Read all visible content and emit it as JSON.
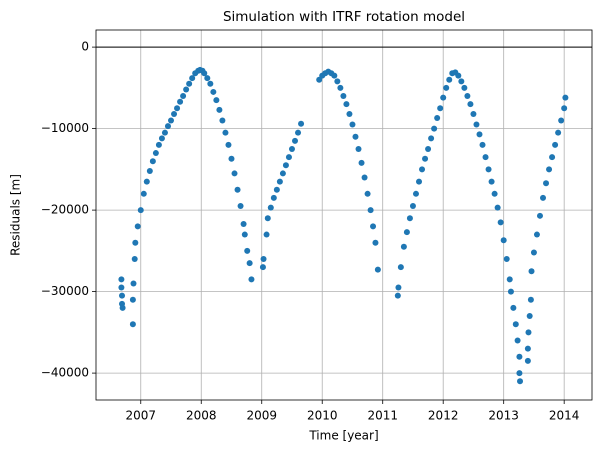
{
  "chart_data": {
    "type": "scatter",
    "title": "Simulation with ITRF rotation model",
    "xlabel": "Time [year]",
    "ylabel": "Residuals [m]",
    "xlim": [
      2006.26,
      2014.46
    ],
    "ylim": [
      -43300,
      2100
    ],
    "xticks": [
      2007,
      2008,
      2009,
      2010,
      2011,
      2012,
      2013,
      2014
    ],
    "yticks": [
      {
        "value": 0,
        "label": "0"
      },
      {
        "value": -10000,
        "label": "−10000"
      },
      {
        "value": -20000,
        "label": "−20000"
      },
      {
        "value": -30000,
        "label": "−30000"
      },
      {
        "value": -40000,
        "label": "−40000"
      }
    ],
    "grid": true,
    "hline": 0,
    "x": [
      2006.68,
      2006.68,
      2006.69,
      2006.69,
      2006.7,
      2006.87,
      2006.87,
      2006.88,
      2006.9,
      2006.91,
      2006.95,
      2007.0,
      2007.05,
      2007.1,
      2007.15,
      2007.2,
      2007.25,
      2007.3,
      2007.35,
      2007.4,
      2007.45,
      2007.5,
      2007.55,
      2007.6,
      2007.65,
      2007.7,
      2007.75,
      2007.8,
      2007.85,
      2007.9,
      2007.95,
      2007.98,
      2008.02,
      2008.05,
      2008.1,
      2008.15,
      2008.2,
      2008.25,
      2008.3,
      2008.35,
      2008.4,
      2008.45,
      2008.5,
      2008.55,
      2008.6,
      2008.65,
      2008.7,
      2008.72,
      2008.76,
      2008.8,
      2008.83,
      2009.02,
      2009.03,
      2009.08,
      2009.1,
      2009.15,
      2009.2,
      2009.25,
      2009.3,
      2009.35,
      2009.4,
      2009.45,
      2009.5,
      2009.55,
      2009.6,
      2009.65,
      2009.95,
      2010.0,
      2010.05,
      2010.1,
      2010.15,
      2010.2,
      2010.25,
      2010.3,
      2010.35,
      2010.4,
      2010.45,
      2010.5,
      2010.55,
      2010.6,
      2010.65,
      2010.7,
      2010.75,
      2010.8,
      2010.84,
      2010.88,
      2010.92,
      2011.25,
      2011.26,
      2011.3,
      2011.35,
      2011.4,
      2011.45,
      2011.5,
      2011.55,
      2011.6,
      2011.65,
      2011.7,
      2011.75,
      2011.8,
      2011.85,
      2011.9,
      2011.95,
      2012.0,
      2012.05,
      2012.1,
      2012.15,
      2012.2,
      2012.25,
      2012.3,
      2012.35,
      2012.4,
      2012.45,
      2012.5,
      2012.55,
      2012.6,
      2012.65,
      2012.7,
      2012.75,
      2012.8,
      2012.85,
      2012.9,
      2012.95,
      2013.0,
      2013.05,
      2013.1,
      2013.12,
      2013.16,
      2013.2,
      2013.23,
      2013.26,
      2013.26,
      2013.27,
      2013.4,
      2013.4,
      2013.41,
      2013.43,
      2013.45,
      2013.46,
      2013.5,
      2013.55,
      2013.6,
      2013.65,
      2013.7,
      2013.75,
      2013.8,
      2013.85,
      2013.9,
      2013.95,
      2014.0,
      2014.02
    ],
    "series": [
      {
        "color": "#1f77b4",
        "values": [
          -28500,
          -29500,
          -30500,
          -31500,
          -32000,
          -34000,
          -31000,
          -29000,
          -26000,
          -24000,
          -22000,
          -20000,
          -18000,
          -16500,
          -15200,
          -14000,
          -13000,
          -12000,
          -11200,
          -10500,
          -9700,
          -9000,
          -8200,
          -7500,
          -6700,
          -6000,
          -5200,
          -4500,
          -3800,
          -3200,
          -2900,
          -2800,
          -2900,
          -3200,
          -3800,
          -4500,
          -5500,
          -6500,
          -7700,
          -9000,
          -10500,
          -12000,
          -13700,
          -15500,
          -17500,
          -19500,
          -21700,
          -23000,
          -25000,
          -26500,
          -28500,
          -27000,
          -26000,
          -23000,
          -21000,
          -19700,
          -18500,
          -17500,
          -16500,
          -15500,
          -14500,
          -13500,
          -12500,
          -11500,
          -10500,
          -9400,
          -4000,
          -3500,
          -3200,
          -3000,
          -3200,
          -3500,
          -4200,
          -5000,
          -6000,
          -7000,
          -8200,
          -9500,
          -11000,
          -12500,
          -14200,
          -16000,
          -18000,
          -20000,
          -22000,
          -24000,
          -27300,
          -30500,
          -29500,
          -27000,
          -24500,
          -22700,
          -21000,
          -19500,
          -18000,
          -16500,
          -15000,
          -13700,
          -12500,
          -11200,
          -10000,
          -8700,
          -7500,
          -6200,
          -5000,
          -4000,
          -3200,
          -3100,
          -3500,
          -4200,
          -5000,
          -6000,
          -7000,
          -8200,
          -9500,
          -10700,
          -12000,
          -13500,
          -15000,
          -16500,
          -18000,
          -19700,
          -21500,
          -23700,
          -26000,
          -28500,
          -30000,
          -32000,
          -34000,
          -36000,
          -38000,
          -40000,
          -41000,
          -37000,
          -38500,
          -35000,
          -33000,
          -31000,
          -27500,
          -25200,
          -23000,
          -20700,
          -18500,
          -16700,
          -15000,
          -13500,
          -12000,
          -10500,
          -9000,
          -7500,
          -6200
        ]
      }
    ]
  }
}
